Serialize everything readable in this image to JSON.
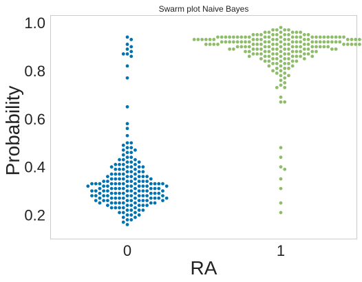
{
  "chart_data": {
    "type": "scatter",
    "title": "Swarm plot Naive Bayes",
    "xlabel": "RA",
    "ylabel": "Probability",
    "categories": [
      "0",
      "1"
    ],
    "ylim": [
      0.1,
      1.03
    ],
    "yticks": [
      0.2,
      0.4,
      0.6,
      0.8,
      1.0
    ],
    "ytick_labels": [
      "0.2",
      "0.4",
      "0.6",
      "0.8",
      "1.0"
    ],
    "grid": false,
    "legend": "none",
    "colors": {
      "0": "#0072b2",
      "1": "#8fbc6a",
      "frame": "#cccccc"
    },
    "series": [
      {
        "category": "0",
        "values": [
          0.94,
          0.93,
          0.91,
          0.9,
          0.89,
          0.88,
          0.87,
          0.87,
          0.86,
          0.82,
          0.77,
          0.65,
          0.58,
          0.56,
          0.53,
          0.5,
          0.5,
          0.49,
          0.48,
          0.48,
          0.47,
          0.47,
          0.46,
          0.46,
          0.45,
          0.44,
          0.44,
          0.43,
          0.43,
          0.43,
          0.42,
          0.42,
          0.42,
          0.41,
          0.41,
          0.41,
          0.41,
          0.4,
          0.4,
          0.4,
          0.4,
          0.4,
          0.39,
          0.39,
          0.39,
          0.39,
          0.38,
          0.38,
          0.38,
          0.38,
          0.37,
          0.37,
          0.37,
          0.37,
          0.37,
          0.36,
          0.36,
          0.36,
          0.36,
          0.36,
          0.36,
          0.35,
          0.35,
          0.35,
          0.35,
          0.35,
          0.35,
          0.34,
          0.34,
          0.34,
          0.34,
          0.34,
          0.34,
          0.34,
          0.33,
          0.33,
          0.33,
          0.33,
          0.33,
          0.33,
          0.33,
          0.33,
          0.33,
          0.33,
          0.33,
          0.33,
          0.32,
          0.32,
          0.32,
          0.32,
          0.32,
          0.32,
          0.32,
          0.32,
          0.32,
          0.31,
          0.31,
          0.31,
          0.31,
          0.31,
          0.31,
          0.31,
          0.31,
          0.31,
          0.3,
          0.3,
          0.3,
          0.3,
          0.3,
          0.3,
          0.3,
          0.3,
          0.3,
          0.3,
          0.29,
          0.29,
          0.29,
          0.29,
          0.29,
          0.29,
          0.29,
          0.29,
          0.29,
          0.28,
          0.28,
          0.28,
          0.28,
          0.28,
          0.28,
          0.28,
          0.28,
          0.28,
          0.28,
          0.27,
          0.27,
          0.27,
          0.27,
          0.27,
          0.27,
          0.27,
          0.27,
          0.27,
          0.27,
          0.26,
          0.26,
          0.26,
          0.26,
          0.26,
          0.26,
          0.26,
          0.26,
          0.26,
          0.25,
          0.25,
          0.25,
          0.25,
          0.25,
          0.25,
          0.25,
          0.25,
          0.24,
          0.24,
          0.24,
          0.24,
          0.24,
          0.24,
          0.23,
          0.23,
          0.23,
          0.23,
          0.23,
          0.22,
          0.22,
          0.22,
          0.22,
          0.21,
          0.21,
          0.21,
          0.2,
          0.2,
          0.2,
          0.19,
          0.19,
          0.18,
          0.18,
          0.17,
          0.16
        ]
      },
      {
        "category": "1",
        "values": [
          0.98,
          0.97,
          0.97,
          0.97,
          0.97,
          0.96,
          0.96,
          0.96,
          0.96,
          0.96,
          0.96,
          0.95,
          0.95,
          0.95,
          0.95,
          0.95,
          0.95,
          0.95,
          0.95,
          0.95,
          0.94,
          0.94,
          0.94,
          0.94,
          0.94,
          0.94,
          0.94,
          0.94,
          0.94,
          0.94,
          0.94,
          0.94,
          0.94,
          0.94,
          0.94,
          0.94,
          0.94,
          0.94,
          0.94,
          0.94,
          0.94,
          0.94,
          0.94,
          0.94,
          0.93,
          0.93,
          0.93,
          0.93,
          0.93,
          0.93,
          0.93,
          0.93,
          0.93,
          0.93,
          0.93,
          0.93,
          0.93,
          0.93,
          0.93,
          0.93,
          0.93,
          0.93,
          0.93,
          0.93,
          0.93,
          0.93,
          0.92,
          0.92,
          0.92,
          0.92,
          0.92,
          0.92,
          0.92,
          0.92,
          0.92,
          0.92,
          0.92,
          0.92,
          0.92,
          0.92,
          0.92,
          0.92,
          0.92,
          0.92,
          0.92,
          0.92,
          0.92,
          0.92,
          0.91,
          0.91,
          0.91,
          0.91,
          0.91,
          0.91,
          0.91,
          0.91,
          0.91,
          0.91,
          0.91,
          0.91,
          0.91,
          0.91,
          0.91,
          0.91,
          0.91,
          0.91,
          0.9,
          0.9,
          0.9,
          0.9,
          0.9,
          0.9,
          0.9,
          0.9,
          0.9,
          0.9,
          0.9,
          0.9,
          0.9,
          0.9,
          0.9,
          0.89,
          0.89,
          0.89,
          0.89,
          0.89,
          0.89,
          0.89,
          0.89,
          0.89,
          0.89,
          0.89,
          0.89,
          0.89,
          0.88,
          0.88,
          0.88,
          0.88,
          0.88,
          0.88,
          0.88,
          0.88,
          0.88,
          0.88,
          0.87,
          0.87,
          0.87,
          0.87,
          0.87,
          0.87,
          0.87,
          0.87,
          0.87,
          0.86,
          0.86,
          0.86,
          0.86,
          0.86,
          0.86,
          0.86,
          0.86,
          0.85,
          0.85,
          0.85,
          0.85,
          0.85,
          0.85,
          0.84,
          0.84,
          0.84,
          0.84,
          0.84,
          0.83,
          0.83,
          0.83,
          0.83,
          0.82,
          0.82,
          0.82,
          0.81,
          0.81,
          0.81,
          0.8,
          0.8,
          0.79,
          0.79,
          0.78,
          0.78,
          0.77,
          0.76,
          0.75,
          0.74,
          0.73,
          0.73,
          0.69,
          0.67,
          0.67,
          0.48,
          0.44,
          0.4,
          0.39,
          0.35,
          0.31,
          0.25,
          0.21
        ]
      }
    ]
  }
}
